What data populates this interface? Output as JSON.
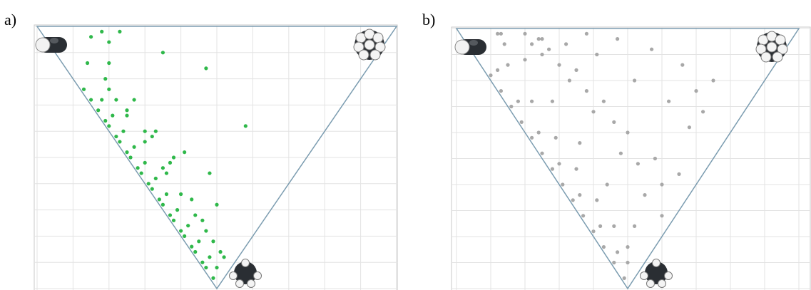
{
  "chart_data": [
    {
      "type": "scatter",
      "title": "a)",
      "color": "#2fb84a",
      "xlim": [
        0,
        1
      ],
      "ylim": [
        0.5,
        1
      ],
      "xticks": [
        0,
        0.1,
        0.2,
        0.3,
        0.4,
        0.5,
        0.6,
        0.7,
        0.8,
        0.9,
        1
      ],
      "yticks": [
        0.5,
        0.55,
        0.6,
        0.65,
        0.7,
        0.75,
        0.8,
        0.85,
        0.9,
        0.95,
        1
      ],
      "grid": true,
      "x": [
        0.13,
        0.15,
        0.17,
        0.19,
        0.2,
        0.22,
        0.23,
        0.25,
        0.26,
        0.28,
        0.29,
        0.31,
        0.32,
        0.34,
        0.35,
        0.37,
        0.38,
        0.4,
        0.41,
        0.43,
        0.44,
        0.46,
        0.47,
        0.49,
        0.18,
        0.21,
        0.24,
        0.27,
        0.3,
        0.33,
        0.36,
        0.39,
        0.42,
        0.45,
        0.48,
        0.5,
        0.2,
        0.25,
        0.3,
        0.35,
        0.4,
        0.44,
        0.47,
        0.51,
        0.15,
        0.2,
        0.27,
        0.33,
        0.38,
        0.14,
        0.19,
        0.22,
        0.3,
        0.37,
        0.18,
        0.2,
        0.23,
        0.35,
        0.47,
        0.48,
        0.5,
        0.58,
        0.41,
        0.46,
        0.25,
        0.32,
        0.36,
        0.43,
        0.49,
        0.52
      ],
      "values": [
        0.88,
        0.86,
        0.84,
        0.82,
        0.81,
        0.79,
        0.78,
        0.76,
        0.75,
        0.73,
        0.72,
        0.7,
        0.69,
        0.67,
        0.66,
        0.64,
        0.63,
        0.61,
        0.6,
        0.58,
        0.57,
        0.55,
        0.54,
        0.52,
        0.86,
        0.83,
        0.8,
        0.77,
        0.74,
        0.71,
        0.68,
        0.65,
        0.62,
        0.59,
        0.56,
        0.54,
        0.88,
        0.83,
        0.78,
        0.73,
        0.68,
        0.64,
        0.61,
        0.57,
        0.98,
        0.93,
        0.86,
        0.8,
        0.75,
        0.93,
        0.9,
        0.86,
        0.8,
        0.74,
        0.99,
        0.97,
        0.99,
        0.95,
        0.92,
        0.72,
        0.66,
        0.81,
        0.76,
        0.63,
        0.84,
        0.79,
        0.72,
        0.67,
        0.59,
        0.56
      ]
    },
    {
      "type": "scatter",
      "title": "b)",
      "color": "#a8a8a8",
      "xlim": [
        0,
        1
      ],
      "ylim": [
        0.5,
        1
      ],
      "xticks": [
        0,
        0.1,
        0.2,
        0.3,
        0.4,
        0.5,
        0.6,
        0.7,
        0.8,
        0.9,
        1
      ],
      "yticks": [
        0.5,
        0.55,
        0.6,
        0.65,
        0.7,
        0.75,
        0.8,
        0.85,
        0.9,
        0.95,
        1
      ],
      "grid": true,
      "x": [
        0.1,
        0.13,
        0.16,
        0.19,
        0.22,
        0.25,
        0.28,
        0.31,
        0.34,
        0.37,
        0.4,
        0.43,
        0.46,
        0.49,
        0.12,
        0.18,
        0.24,
        0.3,
        0.36,
        0.42,
        0.47,
        0.15,
        0.22,
        0.29,
        0.35,
        0.41,
        0.46,
        0.5,
        0.2,
        0.28,
        0.36,
        0.44,
        0.52,
        0.12,
        0.25,
        0.33,
        0.4,
        0.48,
        0.55,
        0.14,
        0.22,
        0.3,
        0.38,
        0.46,
        0.53,
        0.6,
        0.2,
        0.27,
        0.35,
        0.43,
        0.5,
        0.58,
        0.65,
        0.13,
        0.24,
        0.32,
        0.41,
        0.52,
        0.62,
        0.7,
        0.25,
        0.38,
        0.47,
        0.57,
        0.66,
        0.75,
        0.68,
        0.72,
        0.6,
        0.5
      ],
      "values": [
        0.91,
        0.88,
        0.85,
        0.82,
        0.79,
        0.76,
        0.73,
        0.7,
        0.67,
        0.64,
        0.61,
        0.58,
        0.55,
        0.52,
        0.92,
        0.86,
        0.8,
        0.74,
        0.68,
        0.62,
        0.57,
        0.93,
        0.86,
        0.79,
        0.73,
        0.67,
        0.62,
        0.58,
        0.94,
        0.86,
        0.78,
        0.7,
        0.62,
        0.99,
        0.95,
        0.9,
        0.84,
        0.76,
        0.68,
        0.97,
        0.97,
        0.93,
        0.88,
        0.82,
        0.74,
        0.7,
        0.99,
        0.96,
        0.92,
        0.86,
        0.8,
        0.75,
        0.72,
        0.99,
        0.98,
        0.97,
        0.95,
        0.9,
        0.86,
        0.88,
        0.98,
        0.99,
        0.98,
        0.96,
        0.93,
        0.9,
        0.81,
        0.84,
        0.64,
        0.55
      ]
    }
  ]
}
